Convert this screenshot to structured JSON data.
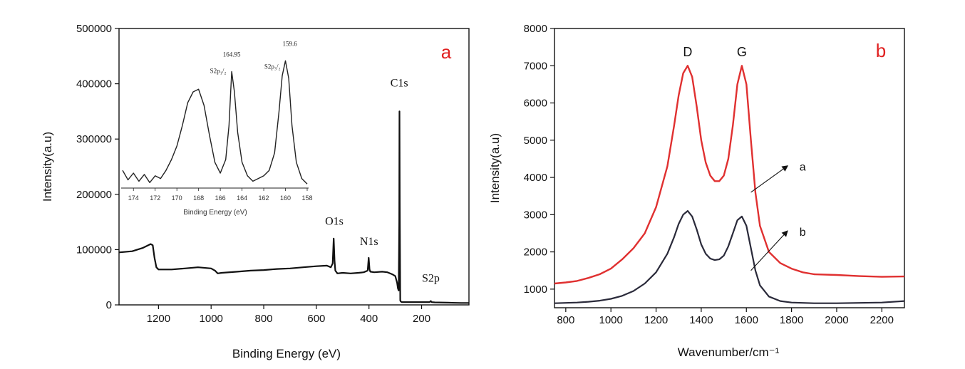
{
  "chart_data": [
    {
      "type": "line",
      "panel": "a",
      "panel_color": "#e02020",
      "xlabel": "Binding Energy (eV)",
      "ylabel": "Intensity(a.u)",
      "xlim": [
        1350,
        20
      ],
      "ylim": [
        0,
        500000
      ],
      "x_reversed": true,
      "xticks": [
        1200,
        1000,
        800,
        600,
        400,
        200
      ],
      "yticks": [
        0,
        100000,
        200000,
        300000,
        400000,
        500000
      ],
      "series": [
        {
          "color": "#111111",
          "x": [
            1350,
            1300,
            1260,
            1230,
            1222,
            1215,
            1208,
            1200,
            1150,
            1100,
            1050,
            1000,
            985,
            975,
            960,
            900,
            850,
            800,
            750,
            700,
            650,
            600,
            560,
            545,
            538,
            534,
            531,
            528,
            520,
            500,
            470,
            440,
            420,
            405,
            401,
            398,
            395,
            380,
            350,
            330,
            310,
            300,
            293,
            290,
            287,
            285,
            284,
            283,
            281,
            279,
            275,
            250,
            200,
            170,
            165,
            162,
            150,
            100,
            50,
            20
          ],
          "y": [
            95000,
            97000,
            103000,
            110000,
            108000,
            85000,
            68000,
            64000,
            64000,
            66000,
            68000,
            66000,
            62000,
            57000,
            58000,
            60000,
            62000,
            63000,
            65000,
            66000,
            68000,
            70000,
            71000,
            68000,
            75000,
            120000,
            80000,
            62000,
            57000,
            58000,
            57000,
            58000,
            59000,
            62000,
            85000,
            64000,
            60000,
            59000,
            60000,
            59000,
            55000,
            52000,
            40000,
            30000,
            26000,
            150000,
            350000,
            180000,
            8000,
            6000,
            5000,
            5000,
            5000,
            5000,
            7000,
            5000,
            4500,
            4000,
            3500,
            3500
          ]
        }
      ],
      "annotations": [
        {
          "text": "C1s",
          "x": 285,
          "y": 395000
        },
        {
          "text": "O1s",
          "x": 532,
          "y": 145000
        },
        {
          "text": "N1s",
          "x": 400,
          "y": 108000
        },
        {
          "text": "S2p",
          "x": 165,
          "y": 42000
        }
      ],
      "inset": {
        "xlabel": "Binding Energy (eV)",
        "xlim": [
          175,
          158
        ],
        "ylim": [
          0,
          100
        ],
        "xticks": [
          174,
          172,
          170,
          168,
          166,
          164,
          162,
          160,
          158
        ],
        "x": [
          175,
          174.5,
          174,
          173.5,
          173,
          172.5,
          172,
          171.5,
          171,
          170.5,
          170,
          169.5,
          169,
          168.5,
          168,
          167.5,
          167,
          166.5,
          166,
          165.5,
          165.2,
          164.95,
          164.7,
          164.4,
          164,
          163.5,
          163,
          162.5,
          162,
          161.5,
          161,
          160.6,
          160.3,
          160.0,
          159.7,
          159.4,
          159,
          158.5,
          158
        ],
        "y": [
          12,
          5,
          10,
          4,
          9,
          3,
          8,
          6,
          12,
          20,
          30,
          45,
          62,
          70,
          72,
          60,
          38,
          18,
          10,
          20,
          45,
          85,
          70,
          40,
          18,
          8,
          4,
          6,
          8,
          12,
          25,
          55,
          82,
          93,
          80,
          45,
          18,
          6,
          2
        ],
        "annotations": [
          {
            "text": "164.95",
            "x": 164.95,
            "y": 96
          },
          {
            "text": "159.6",
            "x": 159.6,
            "y": 104
          },
          {
            "text": "S2p₁/₂",
            "x": 166.2,
            "y": 84
          },
          {
            "text": "S2p₃/₂",
            "x": 161.2,
            "y": 87
          }
        ]
      }
    },
    {
      "type": "line",
      "panel": "b",
      "panel_color": "#e02020",
      "xlabel": "Wavenumber/cm⁻¹",
      "ylabel": "Intensity(a.u)",
      "xlim": [
        750,
        2300
      ],
      "ylim": [
        500,
        8000
      ],
      "xticks": [
        800,
        1000,
        1200,
        1400,
        1600,
        1800,
        2000,
        2200
      ],
      "yticks": [
        1000,
        2000,
        3000,
        4000,
        5000,
        6000,
        7000,
        8000
      ],
      "peak_labels": [
        {
          "text": "D",
          "x": 1340
        },
        {
          "text": "G",
          "x": 1580
        }
      ],
      "series": [
        {
          "name": "a",
          "color": "#e03030",
          "x": [
            750,
            800,
            850,
            900,
            950,
            1000,
            1050,
            1100,
            1150,
            1200,
            1250,
            1280,
            1300,
            1320,
            1340,
            1360,
            1380,
            1400,
            1420,
            1440,
            1460,
            1480,
            1500,
            1520,
            1540,
            1560,
            1580,
            1600,
            1620,
            1640,
            1660,
            1700,
            1750,
            1800,
            1850,
            1900,
            2000,
            2100,
            2200,
            2300
          ],
          "y": [
            1150,
            1180,
            1220,
            1300,
            1400,
            1550,
            1800,
            2100,
            2500,
            3200,
            4300,
            5400,
            6200,
            6800,
            7000,
            6700,
            5900,
            5000,
            4400,
            4050,
            3900,
            3900,
            4050,
            4500,
            5400,
            6500,
            7000,
            6500,
            5000,
            3600,
            2700,
            2000,
            1700,
            1550,
            1450,
            1400,
            1380,
            1350,
            1330,
            1340
          ]
        },
        {
          "name": "b",
          "color": "#2a2a3a",
          "x": [
            750,
            800,
            850,
            900,
            950,
            1000,
            1050,
            1100,
            1150,
            1200,
            1250,
            1280,
            1300,
            1320,
            1340,
            1360,
            1380,
            1400,
            1420,
            1440,
            1460,
            1480,
            1500,
            1520,
            1540,
            1560,
            1580,
            1600,
            1620,
            1640,
            1660,
            1700,
            1750,
            1800,
            1850,
            1900,
            2000,
            2100,
            2200,
            2300
          ],
          "y": [
            620,
            630,
            640,
            660,
            690,
            740,
            820,
            950,
            1150,
            1450,
            1950,
            2400,
            2750,
            3000,
            3100,
            2950,
            2600,
            2200,
            1950,
            1820,
            1780,
            1800,
            1900,
            2150,
            2500,
            2850,
            2950,
            2700,
            2100,
            1500,
            1100,
            800,
            680,
            640,
            630,
            620,
            620,
            630,
            640,
            680
          ]
        }
      ],
      "annotations": [
        {
          "text": "a",
          "x": 1810,
          "y": 4300
        },
        {
          "text": "b",
          "x": 1810,
          "y": 2550
        }
      ]
    }
  ]
}
